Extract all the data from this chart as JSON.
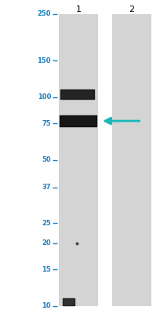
{
  "background_color": "#d4d4d4",
  "outer_bg": "#ffffff",
  "fig_width": 2.05,
  "fig_height": 4.0,
  "dpi": 100,
  "marker_labels": [
    "250",
    "150",
    "100",
    "75",
    "50",
    "37",
    "25",
    "20",
    "15",
    "10"
  ],
  "marker_kda": [
    250,
    150,
    100,
    75,
    50,
    37,
    25,
    20,
    15,
    10
  ],
  "label_color": "#1a7fc1",
  "tick_color": "#1a7fc1",
  "text_color": "#1a7fc1",
  "arrow_color": "#1ab8b8",
  "lane_bg": "#d4d4d4",
  "band_color": "#111111",
  "band2_color": "#0d0d0d"
}
